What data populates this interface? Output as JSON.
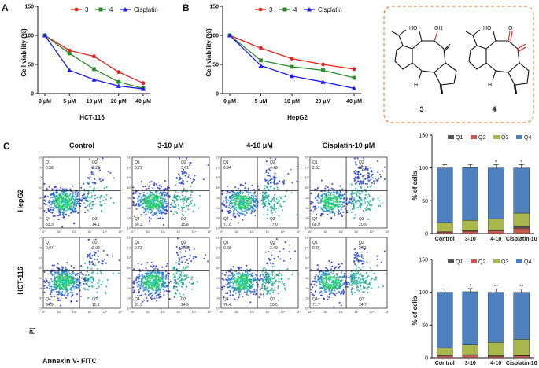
{
  "panels": {
    "a": "A",
    "b": "B",
    "c": "C"
  },
  "colors": {
    "c3": "#e8221f",
    "c4": "#2a8a2a",
    "cis": "#1a1aee",
    "q1": "#555555",
    "q2": "#c45a4f",
    "q3": "#a9b84c",
    "q4": "#4e7fbf"
  },
  "chart_data": [
    {
      "type": "line",
      "title": "",
      "xlabel": "HCT-116",
      "ylabel": "Cell viability (%)",
      "categories": [
        "0 μM",
        "5 μM",
        "10 μM",
        "20 μM",
        "40 μM"
      ],
      "ylim": [
        0,
        150
      ],
      "yticks": [
        "0",
        "50",
        "100",
        "150"
      ],
      "series": [
        {
          "name": "3",
          "values": [
            100,
            74,
            64,
            37,
            18
          ]
        },
        {
          "name": "4",
          "values": [
            100,
            69,
            42,
            20,
            9
          ]
        },
        {
          "name": "Cisplatin",
          "values": [
            100,
            40,
            24,
            13,
            8
          ]
        }
      ]
    },
    {
      "type": "line",
      "title": "",
      "xlabel": "HepG2",
      "ylabel": "Cell viability (%)",
      "categories": [
        "0 μM",
        "5 μM",
        "10 μM",
        "20 μM",
        "40 μM"
      ],
      "ylim": [
        0,
        150
      ],
      "yticks": [
        "0",
        "50",
        "100",
        "150"
      ],
      "series": [
        {
          "name": "3",
          "values": [
            100,
            78,
            60,
            50,
            42
          ]
        },
        {
          "name": "4",
          "values": [
            100,
            57,
            46,
            40,
            27
          ]
        },
        {
          "name": "Cisplatin",
          "values": [
            100,
            48,
            30,
            20,
            9
          ]
        }
      ]
    },
    {
      "type": "bar",
      "stacked": true,
      "cell_line": "HepG2",
      "ylabel": "% of cells",
      "categories": [
        "Control",
        "3-10",
        "4-10",
        "Cisplatin-10"
      ],
      "ylim": [
        0,
        150
      ],
      "yticks": [
        "0",
        "50",
        "100",
        "150"
      ],
      "legend": [
        "Q1",
        "Q2",
        "Q3",
        "Q4"
      ],
      "series": [
        {
          "name": "Q1",
          "values": [
            0.38,
            0.79,
            0.94,
            2.62
          ]
        },
        {
          "name": "Q2",
          "values": [
            2.28,
            3.61,
            4.49,
            8.01
          ]
        },
        {
          "name": "Q3",
          "values": [
            14.1,
            15.8,
            17.0,
            20.5
          ]
        },
        {
          "name": "Q4",
          "values": [
            83.3,
            80.3,
            77.6,
            68.9
          ]
        }
      ],
      "significance": [
        "",
        "",
        "*",
        "*"
      ]
    },
    {
      "type": "bar",
      "stacked": true,
      "cell_line": "HCT-116",
      "ylabel": "% of cells",
      "categories": [
        "Control",
        "3-10",
        "4-10",
        "Cisplatin-10"
      ],
      "ylim": [
        0,
        150
      ],
      "yticks": [
        "0",
        "50",
        "100",
        "150"
      ],
      "legend": [
        "Q1",
        "Q2",
        "Q3",
        "Q4"
      ],
      "series": [
        {
          "name": "Q1",
          "values": [
            0.97,
            0.73,
            0.68,
            0.65
          ]
        },
        {
          "name": "Q2",
          "values": [
            3.08,
            3.95,
            2.4,
            2.91
          ]
        },
        {
          "name": "Q3",
          "values": [
            11.1,
            14.9,
            20.5,
            24.7
          ]
        },
        {
          "name": "Q4",
          "values": [
            84.9,
            81.3,
            76.4,
            71.7
          ]
        }
      ],
      "significance": [
        "",
        "*",
        "**",
        "**"
      ]
    },
    {
      "type": "scatter",
      "kind": "flow-cytometry",
      "xlabel": "Annexin V- FITC",
      "ylabel": "PI",
      "columns": [
        "Control",
        "3-10 μM",
        "4-10 μM",
        "Cisplatin-10 μM"
      ],
      "rows": [
        "HepG2",
        "HCT-116"
      ],
      "quadrant_labels": [
        "Q1",
        "Q2",
        "Q3",
        "Q4"
      ],
      "x_axis_ticks": [
        "10⁰",
        "10¹",
        "10²",
        "10³",
        "10⁴",
        "10⁵"
      ],
      "y_axis_ticks": [
        "10⁰",
        "10¹",
        "10²",
        "10³",
        "10⁴",
        "10⁵",
        "10⁶",
        "10⁷"
      ],
      "plots": [
        [
          {
            "q1": "0.38",
            "q2": "2.28",
            "q3": "14.1",
            "q4": "83.3"
          },
          {
            "q1": "0.79",
            "q2": "3.61",
            "q3": "15.8",
            "q4": "80.3"
          },
          {
            "q1": "0.94",
            "q2": "4.49",
            "q3": "17.0",
            "q4": "77.6"
          },
          {
            "q1": "2.62",
            "q2": "8.01",
            "q3": "20.5",
            "q4": "68.9"
          }
        ],
        [
          {
            "q1": "0.97",
            "q2": "3.08",
            "q3": "11.1",
            "q4": "84.9"
          },
          {
            "q1": "0.73",
            "q2": "3.95",
            "q3": "14.9",
            "q4": "81.3"
          },
          {
            "q1": "0.68",
            "q2": "2.40",
            "q3": "20.5",
            "q4": "76.4"
          },
          {
            "q1": "0.65",
            "q2": "2.91",
            "q3": "24.7",
            "q4": "71.7"
          }
        ]
      ]
    }
  ],
  "structures": {
    "compounds": [
      "3",
      "4"
    ],
    "atoms": {
      "ho": "HO",
      "oh": "OH",
      "ho2": "HO",
      "o": "O",
      "h": "H"
    }
  }
}
